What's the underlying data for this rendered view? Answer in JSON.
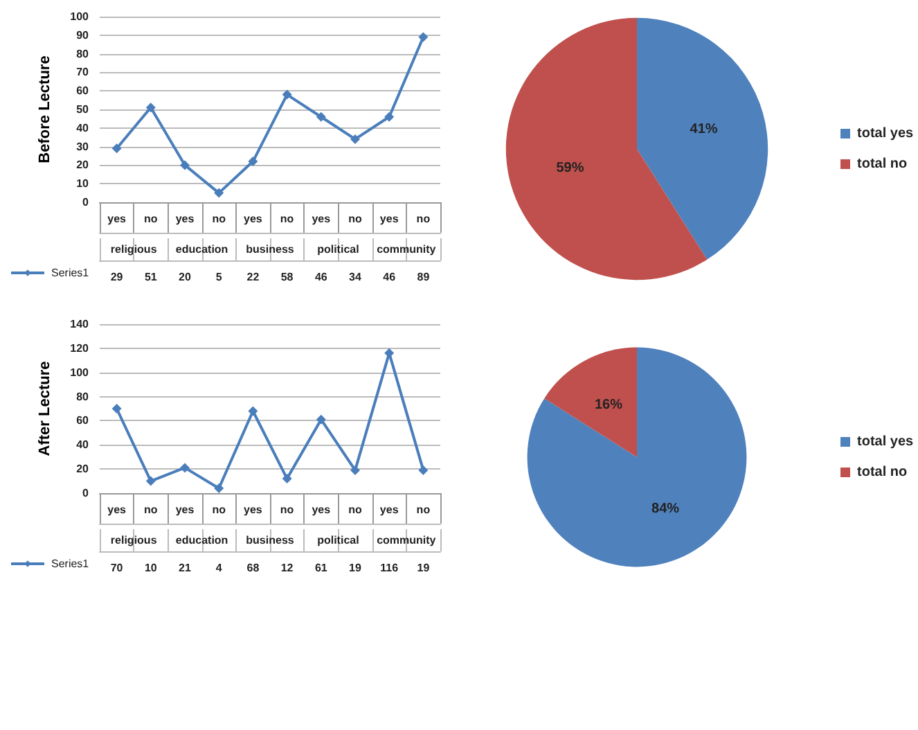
{
  "chart_data": [
    {
      "type": "line",
      "ylabel": "Before Lecture",
      "categories": [
        "yes",
        "no",
        "yes",
        "no",
        "yes",
        "no",
        "yes",
        "no",
        "yes",
        "no"
      ],
      "annotations": [
        "religious",
        "education",
        "business",
        "political",
        "community"
      ],
      "series": [
        {
          "name": "Series1",
          "color": "#4a7ebb",
          "values": [
            29,
            51,
            20,
            5,
            22,
            58,
            46,
            34,
            46,
            89
          ]
        }
      ],
      "ylim": [
        0,
        100
      ],
      "yticks": [
        0,
        10,
        20,
        30,
        40,
        50,
        60,
        70,
        80,
        90,
        100
      ],
      "grid": "y",
      "legend": "bottom left",
      "marker": "diamond",
      "data_labels": true
    },
    {
      "type": "pie",
      "categories": [
        "total yes",
        "total no"
      ],
      "values": [
        41,
        59
      ],
      "colors": [
        "#4f81bd",
        "#c0504d"
      ],
      "value_labels": [
        "41%",
        "59%"
      ],
      "legend": "right"
    },
    {
      "type": "line",
      "ylabel": "After Lecture",
      "categories": [
        "yes",
        "no",
        "yes",
        "no",
        "yes",
        "no",
        "yes",
        "no",
        "yes",
        "no"
      ],
      "annotations": [
        "religious",
        "education",
        "business",
        "political",
        "community"
      ],
      "series": [
        {
          "name": "Series1",
          "color": "#4a7ebb",
          "values": [
            70,
            10,
            21,
            4,
            68,
            12,
            61,
            19,
            116,
            19
          ]
        }
      ],
      "ylim": [
        0,
        140
      ],
      "yticks": [
        0,
        20,
        40,
        60,
        80,
        100,
        120,
        140
      ],
      "grid": "y",
      "legend": "bottom left",
      "marker": "diamond",
      "data_labels": true
    },
    {
      "type": "pie",
      "categories": [
        "total yes",
        "total no"
      ],
      "values": [
        84,
        16
      ],
      "colors": [
        "#4f81bd",
        "#c0504d"
      ],
      "value_labels": [
        "84%",
        "16%"
      ],
      "legend": "right"
    }
  ]
}
